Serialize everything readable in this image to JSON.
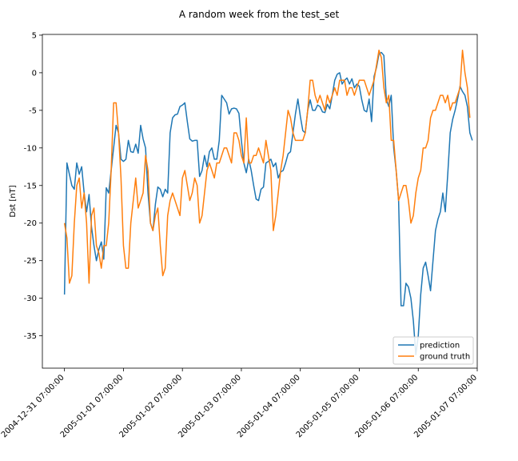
{
  "chart_data": {
    "type": "line",
    "title": "A random week from the test_set",
    "xlabel": "",
    "ylabel": "Dst [nT]",
    "ylim": [
      -39.3,
      5.1
    ],
    "xlim": [
      "2004-12-30 22:00:00",
      "2005-01-07 07:00:00"
    ],
    "x_tick_labels": [
      "2004-12-31 07:00:00",
      "2005-01-01 07:00:00",
      "2005-01-02 07:00:00",
      "2005-01-03 07:00:00",
      "2005-01-04 07:00:00",
      "2005-01-05 07:00:00",
      "2005-01-06 07:00:00",
      "2005-01-07 07:00:00"
    ],
    "y_ticks": [
      5,
      0,
      -5,
      -10,
      -15,
      -20,
      -25,
      -30,
      -35
    ],
    "legend_position": "lower-right",
    "grid": false,
    "x_start": "2004-12-31 07:00:00",
    "x_step": "1 hour",
    "series": [
      {
        "name": "prediction",
        "color": "#1f77b4",
        "values": [
          -29.5,
          -12,
          -13.5,
          -15,
          -15.5,
          -12,
          -13.5,
          -12.5,
          -16,
          -18.5,
          -16.2,
          -20.5,
          -23,
          -25,
          -23.5,
          -22.5,
          -24.8,
          -15.3,
          -16,
          -13,
          -10,
          -7,
          -8,
          -11.5,
          -11.8,
          -11.5,
          -9,
          -10.5,
          -10.6,
          -9.5,
          -10.7,
          -7,
          -8.8,
          -10,
          -16,
          -20,
          -21,
          -17.5,
          -15.2,
          -15.5,
          -16.5,
          -15.5,
          -16,
          -8,
          -6,
          -5.6,
          -5.5,
          -4.5,
          -4.3,
          -4,
          -6.5,
          -8.8,
          -9.1,
          -9,
          -9,
          -13.8,
          -13,
          -11,
          -12.5,
          -10.5,
          -10,
          -11.5,
          -11.5,
          -9,
          -3,
          -3.5,
          -4,
          -5.5,
          -4.8,
          -4.7,
          -4.8,
          -5.4,
          -9,
          -12,
          -13.3,
          -11.5,
          -13,
          -15,
          -16.8,
          -17,
          -15.5,
          -15.2,
          -12,
          -11.8,
          -11.5,
          -12.5,
          -12,
          -14,
          -13.2,
          -13,
          -12,
          -10.8,
          -10.5,
          -8,
          -5.5,
          -3.5,
          -5.8,
          -7.7,
          -8,
          -5,
          -3.6,
          -5,
          -5,
          -4.3,
          -4.5,
          -5.2,
          -5.3,
          -4.2,
          -4.8,
          -3,
          -1,
          -0.2,
          0,
          -1.5,
          -1,
          -0.7,
          -1.5,
          -0.8,
          -2,
          -1.5,
          -1.8,
          -3.6,
          -5,
          -5.2,
          -3.5,
          -6.5,
          -0.5,
          0.7,
          2.5,
          2.7,
          2.3,
          -3.5,
          -4.5,
          -3,
          -10,
          -13,
          -17,
          -31,
          -31,
          -28,
          -28.5,
          -30,
          -33,
          -37.5,
          -35,
          -29.5,
          -26,
          -25.2,
          -27,
          -29,
          -25,
          -21,
          -19.5,
          -18.5,
          -16,
          -18.5,
          -13.5,
          -8,
          -6.2,
          -5,
          -3.5,
          -1.8,
          -2.5,
          -3,
          -4.5,
          -8,
          -9
        ]
      },
      {
        "name": "ground truth",
        "color": "#ff7f0e",
        "values": [
          -20,
          -22,
          -28,
          -27,
          -20,
          -15,
          -14,
          -18,
          -16,
          -20,
          -28,
          -19,
          -18,
          -23,
          -24,
          -26,
          -23,
          -23,
          -20,
          -13,
          -4,
          -4,
          -8,
          -14,
          -23,
          -26,
          -26,
          -20,
          -17,
          -14,
          -18,
          -17,
          -16,
          -11,
          -13,
          -20,
          -21,
          -19,
          -18,
          -23,
          -27,
          -26,
          -19,
          -17,
          -16,
          -17,
          -18,
          -19,
          -14,
          -13,
          -15,
          -17,
          -16,
          -14,
          -15,
          -20,
          -19,
          -16,
          -13,
          -12,
          -13,
          -14,
          -12,
          -12,
          -11,
          -10,
          -10,
          -11,
          -12,
          -8,
          -8,
          -9,
          -11,
          -12,
          -6,
          -12,
          -12,
          -11,
          -11,
          -10,
          -11,
          -12,
          -9,
          -11,
          -13,
          -21,
          -19,
          -16,
          -13,
          -11,
          -8,
          -5,
          -6,
          -8,
          -9,
          -9,
          -9,
          -9,
          -8,
          -5,
          -1,
          -1,
          -3,
          -4,
          -3,
          -4,
          -5,
          -3,
          -4,
          -3,
          -2,
          -3,
          -1,
          -1,
          -1,
          -3,
          -2,
          -2,
          -3,
          -2,
          -1,
          -1,
          -1,
          -2,
          -3,
          -2,
          -1,
          1,
          3,
          2,
          -2,
          -4,
          -3,
          -9,
          -9,
          -13,
          -17,
          -16,
          -15,
          -15,
          -17,
          -20,
          -19,
          -16,
          -14,
          -13,
          -10,
          -10,
          -9,
          -6,
          -5,
          -5,
          -4,
          -3,
          -3,
          -4,
          -3,
          -5,
          -4,
          -4,
          -3,
          -2,
          3,
          0,
          -2,
          -6
        ]
      }
    ]
  }
}
